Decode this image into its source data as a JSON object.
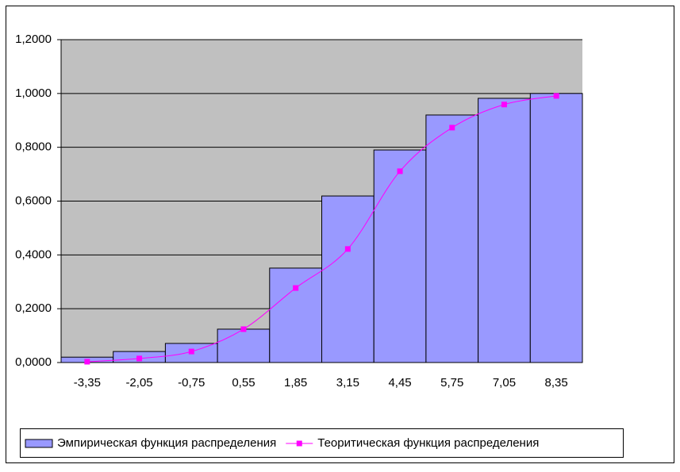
{
  "chart_data": {
    "type": "bar",
    "categories": [
      "-3,35",
      "-2,05",
      "-0,75",
      "0,55",
      "1,85",
      "3,15",
      "4,45",
      "5,75",
      "7,05",
      "8,35"
    ],
    "series": [
      {
        "name": "Эмпирическая функция распределения",
        "type": "bar",
        "color": "#9999ff",
        "values": [
          0.02,
          0.041,
          0.071,
          0.124,
          0.351,
          0.619,
          0.79,
          0.92,
          0.982,
          1.0
        ]
      },
      {
        "name": "Теоритическая функция распределения",
        "type": "line",
        "color": "#ff00ff",
        "values": [
          0.003,
          0.015,
          0.041,
          0.124,
          0.277,
          0.422,
          0.711,
          0.873,
          0.959,
          0.991
        ]
      }
    ],
    "ylim": [
      0,
      1.2
    ],
    "yticks": [
      {
        "value": 0,
        "label": "0,0000"
      },
      {
        "value": 0.2,
        "label": "0,2000"
      },
      {
        "value": 0.4,
        "label": "0,4000"
      },
      {
        "value": 0.6,
        "label": "0,6000"
      },
      {
        "value": 0.8,
        "label": "0,8000"
      },
      {
        "value": 1.0,
        "label": "1,0000"
      },
      {
        "value": 1.2,
        "label": "1,2000"
      }
    ],
    "grid": true,
    "legend": "bottom"
  }
}
